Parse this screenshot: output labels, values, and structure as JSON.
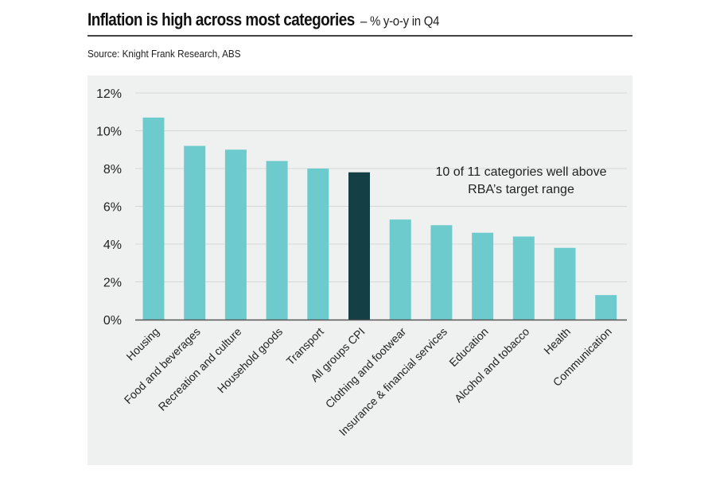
{
  "header": {
    "title": "Inflation is high across most categories",
    "subtitle": "– % y-o-y in Q4",
    "source": "Source: Knight Frank Research, ABS"
  },
  "colors": {
    "bar": "#6ecbcd",
    "highlight_bar": "#133f45",
    "grid": "#d4d9d8",
    "axis": "#555555",
    "panel_bg": "#eef1f0"
  },
  "chart_data": {
    "type": "bar",
    "title": "Inflation is high across most categories – % y-o-y in Q4",
    "xlabel": "",
    "ylabel": "",
    "ylim": [
      0,
      12
    ],
    "yticks": [
      0,
      2,
      4,
      6,
      8,
      10,
      12
    ],
    "ytick_labels": [
      "0%",
      "2%",
      "4%",
      "6%",
      "8%",
      "10%",
      "12%"
    ],
    "grid": true,
    "categories": [
      "Housing",
      "Food and beverages",
      "Recreation and culture",
      "Household goods",
      "Transport",
      "All groups CPI",
      "Clothing and footwear",
      "Insurance & financial services",
      "Education",
      "Alcohol and tobacco",
      "Health",
      "Communication"
    ],
    "values": [
      10.7,
      9.2,
      9.0,
      8.4,
      8.0,
      7.8,
      5.3,
      5.0,
      4.6,
      4.4,
      3.8,
      1.3
    ],
    "highlight": "All groups CPI",
    "annotation": [
      "10 of 11 categories well above",
      "RBA’s target range"
    ]
  }
}
